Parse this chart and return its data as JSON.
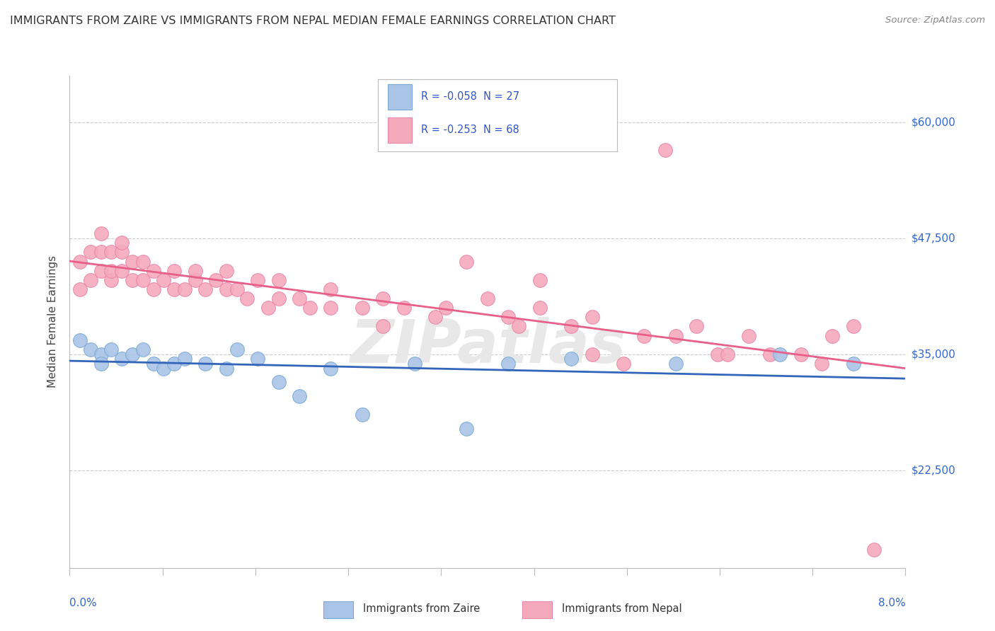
{
  "title": "IMMIGRANTS FROM ZAIRE VS IMMIGRANTS FROM NEPAL MEDIAN FEMALE EARNINGS CORRELATION CHART",
  "source": "Source: ZipAtlas.com",
  "ylabel": "Median Female Earnings",
  "xmin": 0.0,
  "xmax": 0.08,
  "ymin": 12000,
  "ymax": 65000,
  "yticks": [
    22500,
    35000,
    47500,
    60000
  ],
  "ytick_labels": [
    "$22,500",
    "$35,000",
    "$47,500",
    "$60,000"
  ],
  "background_color": "#ffffff",
  "grid_color": "#cccccc",
  "zaire_color": "#aac4e8",
  "zaire_edge": "#7aaad4",
  "zaire_R": -0.058,
  "zaire_N": 27,
  "zaire_label": "Immigrants from Zaire",
  "zaire_line_color": "#3366bb",
  "nepal_color": "#f5aabc",
  "nepal_edge": "#e888a8",
  "nepal_R": -0.253,
  "nepal_N": 68,
  "nepal_label": "Immigrants from Nepal",
  "nepal_line_color": "#e8608a",
  "legend_text_color": "#3355cc",
  "ytick_color": "#3366cc",
  "zaire_x": [
    0.001,
    0.002,
    0.003,
    0.003,
    0.004,
    0.005,
    0.006,
    0.007,
    0.008,
    0.009,
    0.01,
    0.011,
    0.013,
    0.015,
    0.016,
    0.018,
    0.02,
    0.022,
    0.025,
    0.028,
    0.033,
    0.038,
    0.042,
    0.048,
    0.058,
    0.068,
    0.075
  ],
  "zaire_y": [
    36500,
    35500,
    35000,
    34000,
    35500,
    34500,
    35000,
    35500,
    34000,
    33500,
    34000,
    34500,
    34000,
    33500,
    35500,
    34500,
    32000,
    30500,
    33500,
    28500,
    34000,
    27000,
    34000,
    34500,
    34000,
    35000,
    34000
  ],
  "nepal_x": [
    0.001,
    0.001,
    0.002,
    0.002,
    0.003,
    0.003,
    0.003,
    0.004,
    0.004,
    0.004,
    0.005,
    0.005,
    0.005,
    0.006,
    0.006,
    0.007,
    0.007,
    0.008,
    0.008,
    0.009,
    0.01,
    0.01,
    0.011,
    0.012,
    0.012,
    0.013,
    0.014,
    0.015,
    0.015,
    0.016,
    0.017,
    0.018,
    0.019,
    0.02,
    0.02,
    0.022,
    0.023,
    0.025,
    0.025,
    0.028,
    0.03,
    0.03,
    0.032,
    0.035,
    0.036,
    0.038,
    0.04,
    0.042,
    0.043,
    0.045,
    0.045,
    0.048,
    0.05,
    0.05,
    0.053,
    0.055,
    0.057,
    0.058,
    0.06,
    0.062,
    0.063,
    0.065,
    0.067,
    0.07,
    0.072,
    0.073,
    0.075,
    0.077
  ],
  "nepal_y": [
    42000,
    45000,
    43000,
    46000,
    44000,
    46000,
    48000,
    43000,
    44000,
    46000,
    44000,
    46000,
    47000,
    43000,
    45000,
    43000,
    45000,
    42000,
    44000,
    43000,
    42000,
    44000,
    42000,
    43000,
    44000,
    42000,
    43000,
    42000,
    44000,
    42000,
    41000,
    43000,
    40000,
    41000,
    43000,
    41000,
    40000,
    40000,
    42000,
    40000,
    41000,
    38000,
    40000,
    39000,
    40000,
    45000,
    41000,
    39000,
    38000,
    43000,
    40000,
    38000,
    39000,
    35000,
    34000,
    37000,
    57000,
    37000,
    38000,
    35000,
    35000,
    37000,
    35000,
    35000,
    34000,
    37000,
    38000,
    14000
  ]
}
